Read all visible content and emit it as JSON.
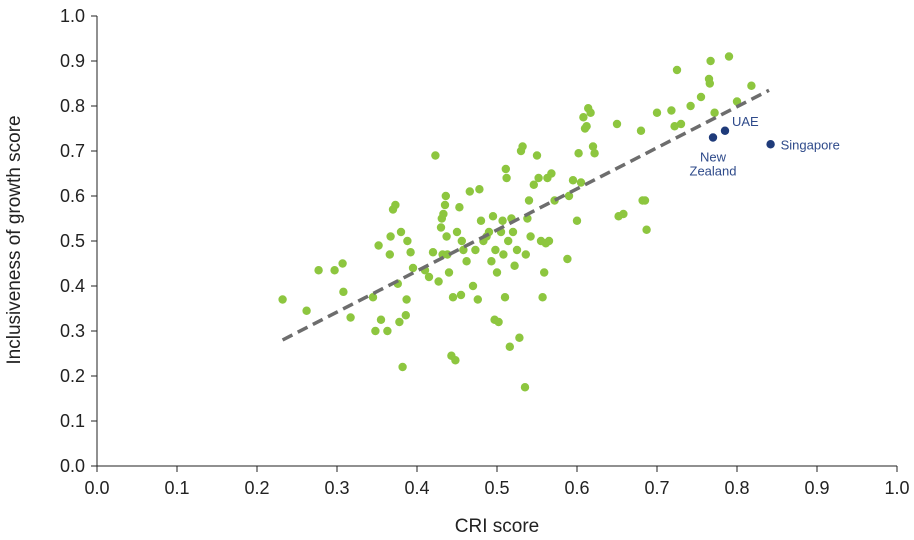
{
  "chart_data": {
    "type": "scatter",
    "xlabel": "CRI score",
    "ylabel": "Inclusiveness of growth score",
    "xlim": [
      0.0,
      1.0
    ],
    "ylim": [
      0.0,
      1.0
    ],
    "x_ticks": [
      "0.0",
      "0.1",
      "0.2",
      "0.3",
      "0.4",
      "0.5",
      "0.6",
      "0.7",
      "0.8",
      "0.9",
      "1.0"
    ],
    "y_ticks": [
      "0.0",
      "0.1",
      "0.2",
      "0.3",
      "0.4",
      "0.5",
      "0.6",
      "0.7",
      "0.8",
      "0.9",
      "1.0"
    ],
    "grid": false,
    "colors": {
      "points": "#8dc63f",
      "highlight": "#1f3b7a",
      "trend": "#6d6d6d",
      "axis": "#222222"
    },
    "series": [
      {
        "points": [
          [
            0.232,
            0.37
          ],
          [
            0.262,
            0.345
          ],
          [
            0.277,
            0.435
          ],
          [
            0.297,
            0.435
          ],
          [
            0.307,
            0.45
          ],
          [
            0.308,
            0.387
          ],
          [
            0.317,
            0.33
          ],
          [
            0.345,
            0.375
          ],
          [
            0.348,
            0.3
          ],
          [
            0.352,
            0.49
          ],
          [
            0.355,
            0.325
          ],
          [
            0.363,
            0.3
          ],
          [
            0.366,
            0.47
          ],
          [
            0.367,
            0.51
          ],
          [
            0.37,
            0.57
          ],
          [
            0.373,
            0.58
          ],
          [
            0.376,
            0.405
          ],
          [
            0.378,
            0.32
          ],
          [
            0.38,
            0.52
          ],
          [
            0.382,
            0.22
          ],
          [
            0.386,
            0.335
          ],
          [
            0.387,
            0.37
          ],
          [
            0.388,
            0.5
          ],
          [
            0.392,
            0.475
          ],
          [
            0.395,
            0.44
          ],
          [
            0.41,
            0.435
          ],
          [
            0.415,
            0.42
          ],
          [
            0.42,
            0.475
          ],
          [
            0.423,
            0.69
          ],
          [
            0.427,
            0.41
          ],
          [
            0.43,
            0.53
          ],
          [
            0.431,
            0.55
          ],
          [
            0.432,
            0.47
          ],
          [
            0.433,
            0.56
          ],
          [
            0.435,
            0.58
          ],
          [
            0.436,
            0.6
          ],
          [
            0.437,
            0.51
          ],
          [
            0.438,
            0.47
          ],
          [
            0.44,
            0.43
          ],
          [
            0.443,
            0.245
          ],
          [
            0.445,
            0.375
          ],
          [
            0.448,
            0.235
          ],
          [
            0.45,
            0.52
          ],
          [
            0.453,
            0.575
          ],
          [
            0.455,
            0.38
          ],
          [
            0.456,
            0.5
          ],
          [
            0.458,
            0.48
          ],
          [
            0.462,
            0.455
          ],
          [
            0.466,
            0.61
          ],
          [
            0.47,
            0.4
          ],
          [
            0.473,
            0.48
          ],
          [
            0.476,
            0.37
          ],
          [
            0.478,
            0.615
          ],
          [
            0.48,
            0.545
          ],
          [
            0.483,
            0.5
          ],
          [
            0.487,
            0.51
          ],
          [
            0.49,
            0.52
          ],
          [
            0.493,
            0.455
          ],
          [
            0.495,
            0.555
          ],
          [
            0.497,
            0.325
          ],
          [
            0.498,
            0.48
          ],
          [
            0.5,
            0.43
          ],
          [
            0.502,
            0.32
          ],
          [
            0.505,
            0.52
          ],
          [
            0.507,
            0.545
          ],
          [
            0.508,
            0.47
          ],
          [
            0.51,
            0.375
          ],
          [
            0.511,
            0.66
          ],
          [
            0.512,
            0.64
          ],
          [
            0.514,
            0.5
          ],
          [
            0.516,
            0.265
          ],
          [
            0.518,
            0.55
          ],
          [
            0.52,
            0.52
          ],
          [
            0.522,
            0.445
          ],
          [
            0.525,
            0.48
          ],
          [
            0.528,
            0.285
          ],
          [
            0.53,
            0.7
          ],
          [
            0.532,
            0.71
          ],
          [
            0.535,
            0.175
          ],
          [
            0.536,
            0.47
          ],
          [
            0.538,
            0.55
          ],
          [
            0.54,
            0.59
          ],
          [
            0.542,
            0.51
          ],
          [
            0.546,
            0.625
          ],
          [
            0.55,
            0.69
          ],
          [
            0.552,
            0.64
          ],
          [
            0.555,
            0.5
          ],
          [
            0.557,
            0.375
          ],
          [
            0.559,
            0.43
          ],
          [
            0.561,
            0.495
          ],
          [
            0.563,
            0.64
          ],
          [
            0.565,
            0.5
          ],
          [
            0.568,
            0.65
          ],
          [
            0.572,
            0.59
          ],
          [
            0.588,
            0.46
          ],
          [
            0.59,
            0.6
          ],
          [
            0.595,
            0.635
          ],
          [
            0.6,
            0.545
          ],
          [
            0.602,
            0.695
          ],
          [
            0.605,
            0.63
          ],
          [
            0.608,
            0.775
          ],
          [
            0.61,
            0.75
          ],
          [
            0.612,
            0.755
          ],
          [
            0.614,
            0.795
          ],
          [
            0.617,
            0.785
          ],
          [
            0.62,
            0.71
          ],
          [
            0.622,
            0.695
          ],
          [
            0.65,
            0.76
          ],
          [
            0.652,
            0.555
          ],
          [
            0.658,
            0.56
          ],
          [
            0.68,
            0.745
          ],
          [
            0.682,
            0.59
          ],
          [
            0.685,
            0.59
          ],
          [
            0.687,
            0.525
          ],
          [
            0.7,
            0.785
          ],
          [
            0.718,
            0.79
          ],
          [
            0.722,
            0.755
          ],
          [
            0.725,
            0.88
          ],
          [
            0.73,
            0.76
          ],
          [
            0.742,
            0.8
          ],
          [
            0.755,
            0.82
          ],
          [
            0.765,
            0.86
          ],
          [
            0.766,
            0.85
          ],
          [
            0.767,
            0.9
          ],
          [
            0.772,
            0.785
          ],
          [
            0.79,
            0.91
          ],
          [
            0.8,
            0.81
          ],
          [
            0.818,
            0.845
          ]
        ]
      }
    ],
    "highlighted": [
      {
        "label": "UAE",
        "x": 0.785,
        "y": 0.745
      },
      {
        "label": "New Zealand",
        "x": 0.77,
        "y": 0.73
      },
      {
        "label": "Singapore",
        "x": 0.842,
        "y": 0.715
      }
    ],
    "trendline": {
      "x": [
        0.232,
        0.84
      ],
      "y": [
        0.28,
        0.835
      ]
    }
  }
}
